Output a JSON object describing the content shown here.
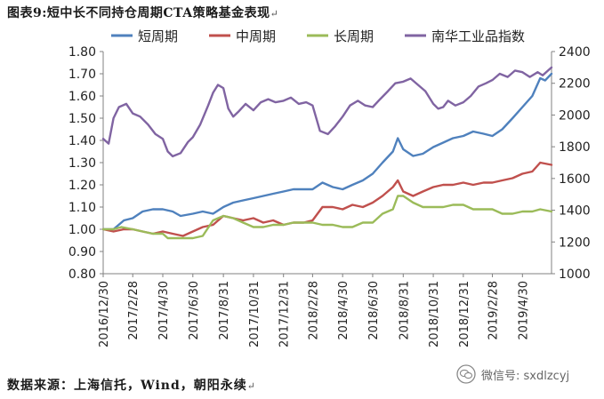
{
  "header": {
    "title": "图表9:短中长不同持仓周期CTA策略基金表现",
    "return_mark": "↵"
  },
  "footer": {
    "source": "数据来源：上海信托，Wind，朝阳永续",
    "return_mark": "↵"
  },
  "watermark": {
    "text": "微信号: sxdlzcyj",
    "icon": "wechat-icon"
  },
  "colors": {
    "short": "#4f81bd",
    "mid": "#c0504d",
    "long": "#9bbb59",
    "index": "#8064a2",
    "axis": "#808080"
  },
  "chart_data": {
    "type": "line",
    "legend_position": "top",
    "grid": false,
    "xlim": [
      "2016-12-30",
      "2019-06-28"
    ],
    "y_left": {
      "min": 0.8,
      "max": 1.8,
      "ticks": [
        "0.80",
        "0.90",
        "1.00",
        "1.10",
        "1.20",
        "1.30",
        "1.40",
        "1.50",
        "1.60",
        "1.70",
        "1.80"
      ]
    },
    "y_right": {
      "min": 1000,
      "max": 2400,
      "ticks": [
        "1000",
        "1200",
        "1400",
        "1600",
        "1800",
        "2000",
        "2200",
        "2400"
      ]
    },
    "x_ticks": [
      "2016/12/30",
      "2017/2/28",
      "2017/4/30",
      "2017/6/30",
      "2017/8/31",
      "2017/10/31",
      "2017/12/31",
      "2018/2/28",
      "2018/4/30",
      "2018/6/30",
      "2018/8/31",
      "2018/10/31",
      "2018/12/31",
      "2019/2/28",
      "2019/4/30"
    ],
    "x_tick_dates": [
      "2016-12-30",
      "2017-02-28",
      "2017-04-30",
      "2017-06-30",
      "2017-08-31",
      "2017-10-31",
      "2017-12-31",
      "2018-02-28",
      "2018-04-30",
      "2018-06-30",
      "2018-08-31",
      "2018-10-31",
      "2018-12-31",
      "2019-02-28",
      "2019-04-30"
    ],
    "series": [
      {
        "name": "短周期",
        "axis": "left",
        "color": "#4f81bd",
        "points": [
          [
            "2016-12-30",
            1.0
          ],
          [
            "2017-01-20",
            1.0
          ],
          [
            "2017-02-10",
            1.04
          ],
          [
            "2017-02-28",
            1.05
          ],
          [
            "2017-03-20",
            1.08
          ],
          [
            "2017-04-10",
            1.09
          ],
          [
            "2017-04-30",
            1.09
          ],
          [
            "2017-05-20",
            1.08
          ],
          [
            "2017-06-05",
            1.06
          ],
          [
            "2017-06-30",
            1.07
          ],
          [
            "2017-07-20",
            1.08
          ],
          [
            "2017-08-10",
            1.07
          ],
          [
            "2017-08-31",
            1.1
          ],
          [
            "2017-09-20",
            1.12
          ],
          [
            "2017-10-10",
            1.13
          ],
          [
            "2017-10-31",
            1.14
          ],
          [
            "2017-11-20",
            1.15
          ],
          [
            "2017-12-10",
            1.16
          ],
          [
            "2017-12-31",
            1.17
          ],
          [
            "2018-01-20",
            1.18
          ],
          [
            "2018-02-10",
            1.18
          ],
          [
            "2018-02-28",
            1.18
          ],
          [
            "2018-03-20",
            1.21
          ],
          [
            "2018-04-10",
            1.19
          ],
          [
            "2018-04-30",
            1.18
          ],
          [
            "2018-05-20",
            1.2
          ],
          [
            "2018-06-10",
            1.22
          ],
          [
            "2018-06-30",
            1.25
          ],
          [
            "2018-07-20",
            1.3
          ],
          [
            "2018-08-10",
            1.35
          ],
          [
            "2018-08-20",
            1.41
          ],
          [
            "2018-08-31",
            1.36
          ],
          [
            "2018-09-20",
            1.33
          ],
          [
            "2018-10-10",
            1.34
          ],
          [
            "2018-10-31",
            1.37
          ],
          [
            "2018-11-20",
            1.39
          ],
          [
            "2018-12-10",
            1.41
          ],
          [
            "2018-12-31",
            1.42
          ],
          [
            "2019-01-20",
            1.44
          ],
          [
            "2019-02-10",
            1.43
          ],
          [
            "2019-02-28",
            1.42
          ],
          [
            "2019-03-20",
            1.45
          ],
          [
            "2019-04-10",
            1.5
          ],
          [
            "2019-04-30",
            1.55
          ],
          [
            "2019-05-20",
            1.6
          ],
          [
            "2019-06-05",
            1.68
          ],
          [
            "2019-06-15",
            1.67
          ],
          [
            "2019-06-28",
            1.7
          ]
        ]
      },
      {
        "name": "中周期",
        "axis": "left",
        "color": "#c0504d",
        "points": [
          [
            "2016-12-30",
            1.0
          ],
          [
            "2017-01-20",
            0.99
          ],
          [
            "2017-02-10",
            1.0
          ],
          [
            "2017-02-28",
            1.0
          ],
          [
            "2017-03-20",
            0.99
          ],
          [
            "2017-04-10",
            0.98
          ],
          [
            "2017-04-30",
            0.99
          ],
          [
            "2017-05-20",
            0.98
          ],
          [
            "2017-06-10",
            0.97
          ],
          [
            "2017-06-30",
            0.99
          ],
          [
            "2017-07-20",
            1.01
          ],
          [
            "2017-08-10",
            1.02
          ],
          [
            "2017-08-31",
            1.06
          ],
          [
            "2017-09-20",
            1.05
          ],
          [
            "2017-10-10",
            1.04
          ],
          [
            "2017-10-31",
            1.05
          ],
          [
            "2017-11-20",
            1.03
          ],
          [
            "2017-12-10",
            1.04
          ],
          [
            "2017-12-31",
            1.02
          ],
          [
            "2018-01-20",
            1.03
          ],
          [
            "2018-02-10",
            1.03
          ],
          [
            "2018-02-28",
            1.04
          ],
          [
            "2018-03-20",
            1.1
          ],
          [
            "2018-04-10",
            1.1
          ],
          [
            "2018-04-30",
            1.09
          ],
          [
            "2018-05-20",
            1.11
          ],
          [
            "2018-06-10",
            1.1
          ],
          [
            "2018-06-30",
            1.12
          ],
          [
            "2018-07-20",
            1.15
          ],
          [
            "2018-08-10",
            1.19
          ],
          [
            "2018-08-20",
            1.22
          ],
          [
            "2018-08-31",
            1.17
          ],
          [
            "2018-09-20",
            1.15
          ],
          [
            "2018-10-10",
            1.17
          ],
          [
            "2018-10-31",
            1.19
          ],
          [
            "2018-11-20",
            1.2
          ],
          [
            "2018-12-10",
            1.2
          ],
          [
            "2018-12-31",
            1.21
          ],
          [
            "2019-01-20",
            1.2
          ],
          [
            "2019-02-10",
            1.21
          ],
          [
            "2019-02-28",
            1.21
          ],
          [
            "2019-03-20",
            1.22
          ],
          [
            "2019-04-10",
            1.23
          ],
          [
            "2019-04-30",
            1.25
          ],
          [
            "2019-05-20",
            1.26
          ],
          [
            "2019-06-05",
            1.3
          ],
          [
            "2019-06-28",
            1.29
          ]
        ]
      },
      {
        "name": "长周期",
        "axis": "left",
        "color": "#9bbb59",
        "points": [
          [
            "2016-12-30",
            1.0
          ],
          [
            "2017-01-20",
            1.0
          ],
          [
            "2017-02-05",
            1.01
          ],
          [
            "2017-02-28",
            1.0
          ],
          [
            "2017-03-20",
            0.99
          ],
          [
            "2017-04-10",
            0.98
          ],
          [
            "2017-04-30",
            0.98
          ],
          [
            "2017-05-10",
            0.96
          ],
          [
            "2017-06-10",
            0.96
          ],
          [
            "2017-06-30",
            0.96
          ],
          [
            "2017-07-20",
            0.97
          ],
          [
            "2017-08-10",
            1.04
          ],
          [
            "2017-08-31",
            1.06
          ],
          [
            "2017-09-20",
            1.05
          ],
          [
            "2017-10-10",
            1.03
          ],
          [
            "2017-10-31",
            1.01
          ],
          [
            "2017-11-20",
            1.01
          ],
          [
            "2017-12-10",
            1.02
          ],
          [
            "2017-12-31",
            1.02
          ],
          [
            "2018-01-20",
            1.03
          ],
          [
            "2018-02-10",
            1.03
          ],
          [
            "2018-02-28",
            1.03
          ],
          [
            "2018-03-20",
            1.02
          ],
          [
            "2018-04-10",
            1.02
          ],
          [
            "2018-04-30",
            1.01
          ],
          [
            "2018-05-20",
            1.01
          ],
          [
            "2018-06-10",
            1.03
          ],
          [
            "2018-06-30",
            1.03
          ],
          [
            "2018-07-20",
            1.07
          ],
          [
            "2018-08-10",
            1.09
          ],
          [
            "2018-08-20",
            1.15
          ],
          [
            "2018-08-31",
            1.15
          ],
          [
            "2018-09-20",
            1.12
          ],
          [
            "2018-10-10",
            1.1
          ],
          [
            "2018-10-31",
            1.1
          ],
          [
            "2018-11-20",
            1.1
          ],
          [
            "2018-12-10",
            1.11
          ],
          [
            "2018-12-31",
            1.11
          ],
          [
            "2019-01-20",
            1.09
          ],
          [
            "2019-02-10",
            1.09
          ],
          [
            "2019-02-28",
            1.09
          ],
          [
            "2019-03-20",
            1.07
          ],
          [
            "2019-04-10",
            1.07
          ],
          [
            "2019-04-30",
            1.08
          ],
          [
            "2019-05-20",
            1.08
          ],
          [
            "2019-06-05",
            1.09
          ],
          [
            "2019-06-28",
            1.08
          ]
        ]
      },
      {
        "name": "南华工业品指数",
        "axis": "right",
        "color": "#8064a2",
        "points": [
          [
            "2016-12-30",
            1850
          ],
          [
            "2017-01-10",
            1820
          ],
          [
            "2017-01-20",
            1980
          ],
          [
            "2017-01-31",
            2050
          ],
          [
            "2017-02-15",
            2070
          ],
          [
            "2017-02-28",
            2010
          ],
          [
            "2017-03-15",
            1990
          ],
          [
            "2017-03-31",
            1940
          ],
          [
            "2017-04-15",
            1880
          ],
          [
            "2017-04-30",
            1850
          ],
          [
            "2017-05-10",
            1770
          ],
          [
            "2017-05-20",
            1740
          ],
          [
            "2017-06-05",
            1760
          ],
          [
            "2017-06-20",
            1830
          ],
          [
            "2017-06-30",
            1860
          ],
          [
            "2017-07-15",
            1940
          ],
          [
            "2017-07-31",
            2060
          ],
          [
            "2017-08-10",
            2140
          ],
          [
            "2017-08-20",
            2190
          ],
          [
            "2017-08-31",
            2170
          ],
          [
            "2017-09-10",
            2040
          ],
          [
            "2017-09-20",
            1990
          ],
          [
            "2017-09-30",
            2020
          ],
          [
            "2017-10-15",
            2070
          ],
          [
            "2017-10-31",
            2030
          ],
          [
            "2017-11-15",
            2080
          ],
          [
            "2017-11-30",
            2100
          ],
          [
            "2017-12-15",
            2080
          ],
          [
            "2017-12-31",
            2090
          ],
          [
            "2018-01-15",
            2110
          ],
          [
            "2018-01-31",
            2070
          ],
          [
            "2018-02-15",
            2080
          ],
          [
            "2018-02-28",
            2060
          ],
          [
            "2018-03-15",
            1900
          ],
          [
            "2018-03-31",
            1880
          ],
          [
            "2018-04-15",
            1930
          ],
          [
            "2018-04-30",
            1990
          ],
          [
            "2018-05-15",
            2060
          ],
          [
            "2018-05-31",
            2090
          ],
          [
            "2018-06-15",
            2060
          ],
          [
            "2018-06-30",
            2050
          ],
          [
            "2018-07-15",
            2100
          ],
          [
            "2018-07-31",
            2150
          ],
          [
            "2018-08-15",
            2200
          ],
          [
            "2018-08-31",
            2210
          ],
          [
            "2018-09-15",
            2230
          ],
          [
            "2018-09-30",
            2190
          ],
          [
            "2018-10-15",
            2150
          ],
          [
            "2018-10-31",
            2070
          ],
          [
            "2018-11-10",
            2040
          ],
          [
            "2018-11-20",
            2050
          ],
          [
            "2018-11-30",
            2090
          ],
          [
            "2018-12-15",
            2060
          ],
          [
            "2018-12-31",
            2080
          ],
          [
            "2019-01-15",
            2120
          ],
          [
            "2019-01-31",
            2180
          ],
          [
            "2019-02-15",
            2200
          ],
          [
            "2019-02-28",
            2220
          ],
          [
            "2019-03-15",
            2260
          ],
          [
            "2019-03-31",
            2240
          ],
          [
            "2019-04-15",
            2280
          ],
          [
            "2019-04-30",
            2270
          ],
          [
            "2019-05-15",
            2240
          ],
          [
            "2019-05-31",
            2270
          ],
          [
            "2019-06-10",
            2250
          ],
          [
            "2019-06-28",
            2300
          ]
        ]
      }
    ]
  }
}
